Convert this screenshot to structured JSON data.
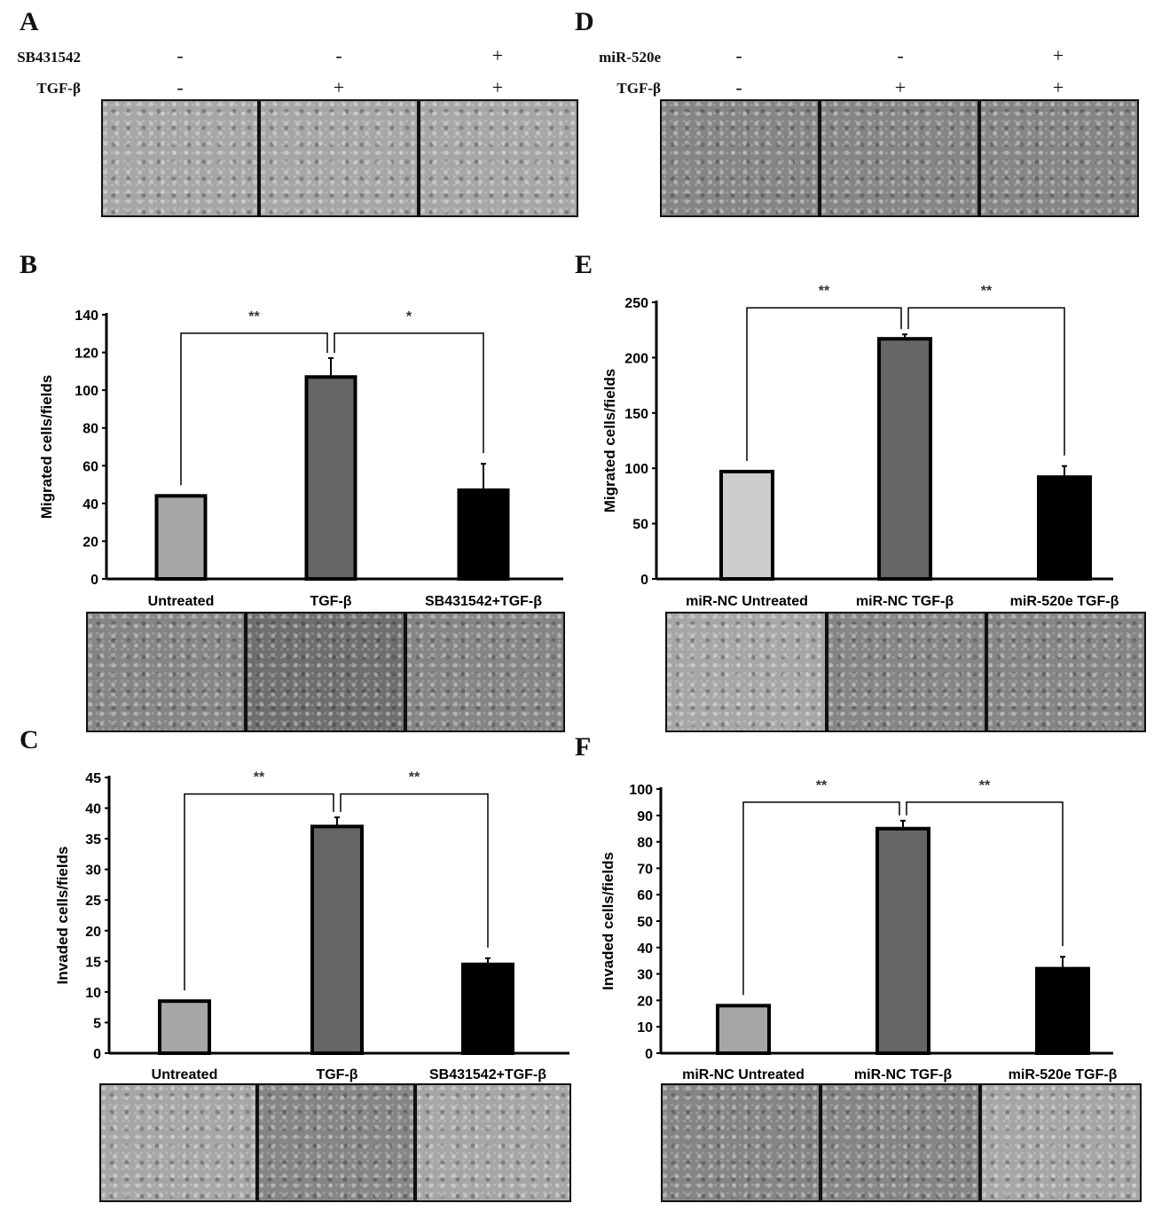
{
  "panels": {
    "A": {
      "label": "A",
      "rows": [
        {
          "name": "SB431542",
          "signs": [
            "-",
            "-",
            "+"
          ]
        },
        {
          "name": "TGF-β",
          "signs": [
            "-",
            "+",
            "+"
          ]
        }
      ]
    },
    "D": {
      "label": "D",
      "rows": [
        {
          "name": "miR-520e",
          "signs": [
            "-",
            "-",
            "+"
          ]
        },
        {
          "name": "TGF-β",
          "signs": [
            "-",
            "+",
            "+"
          ]
        }
      ]
    },
    "B": {
      "label": "B"
    },
    "C": {
      "label": "C"
    },
    "E": {
      "label": "E"
    },
    "F": {
      "label": "F"
    }
  },
  "colors": {
    "bar1": "#a6a6a6",
    "bar1_E": "#cccccc",
    "bar2": "#666666",
    "bar3": "#000000"
  },
  "chart_data": [
    {
      "id": "B",
      "type": "bar",
      "ylabel": "Migrated cells/fields",
      "ylim": [
        0,
        140
      ],
      "yticks": [
        0,
        20,
        40,
        60,
        80,
        100,
        120,
        140
      ],
      "categories": [
        "Untreated",
        "TGF-β",
        "SB431542+TGF-β"
      ],
      "values": [
        44,
        107,
        47
      ],
      "errors": [
        0,
        10,
        14
      ],
      "significance": [
        {
          "from": 0,
          "to": 1,
          "label": "**"
        },
        {
          "from": 1,
          "to": 2,
          "label": "*"
        }
      ]
    },
    {
      "id": "C",
      "type": "bar",
      "ylabel": "Invaded cells/fields",
      "ylim": [
        0,
        45
      ],
      "yticks": [
        0,
        5,
        10,
        15,
        20,
        25,
        30,
        35,
        40,
        45
      ],
      "categories": [
        "Untreated",
        "TGF-β",
        "SB431542+TGF-β"
      ],
      "values": [
        8.5,
        37,
        14.5
      ],
      "errors": [
        0,
        1.5,
        1
      ],
      "significance": [
        {
          "from": 0,
          "to": 1,
          "label": "**"
        },
        {
          "from": 1,
          "to": 2,
          "label": "**"
        }
      ]
    },
    {
      "id": "E",
      "type": "bar",
      "ylabel": "Migrated cells/fields",
      "ylim": [
        0,
        250
      ],
      "yticks": [
        0,
        50,
        100,
        150,
        200,
        250
      ],
      "categories": [
        "miR-NC Untreated",
        "miR-NC  TGF-β",
        "miR-520e  TGF-β"
      ],
      "values": [
        97,
        217,
        92
      ],
      "errors": [
        0,
        4,
        10
      ],
      "significance": [
        {
          "from": 0,
          "to": 1,
          "label": "**"
        },
        {
          "from": 1,
          "to": 2,
          "label": "**"
        }
      ]
    },
    {
      "id": "F",
      "type": "bar",
      "ylabel": "Invaded  cells/fields",
      "ylim": [
        0,
        100
      ],
      "yticks": [
        0,
        10,
        20,
        30,
        40,
        50,
        60,
        70,
        80,
        90,
        100
      ],
      "categories": [
        "miR-NC Untreated",
        "miR-NC  TGF-β",
        "miR-520e  TGF-β"
      ],
      "values": [
        18,
        85,
        32
      ],
      "errors": [
        0,
        3,
        4.5
      ],
      "significance": [
        {
          "from": 0,
          "to": 1,
          "label": "**"
        },
        {
          "from": 1,
          "to": 2,
          "label": "**"
        }
      ]
    }
  ]
}
